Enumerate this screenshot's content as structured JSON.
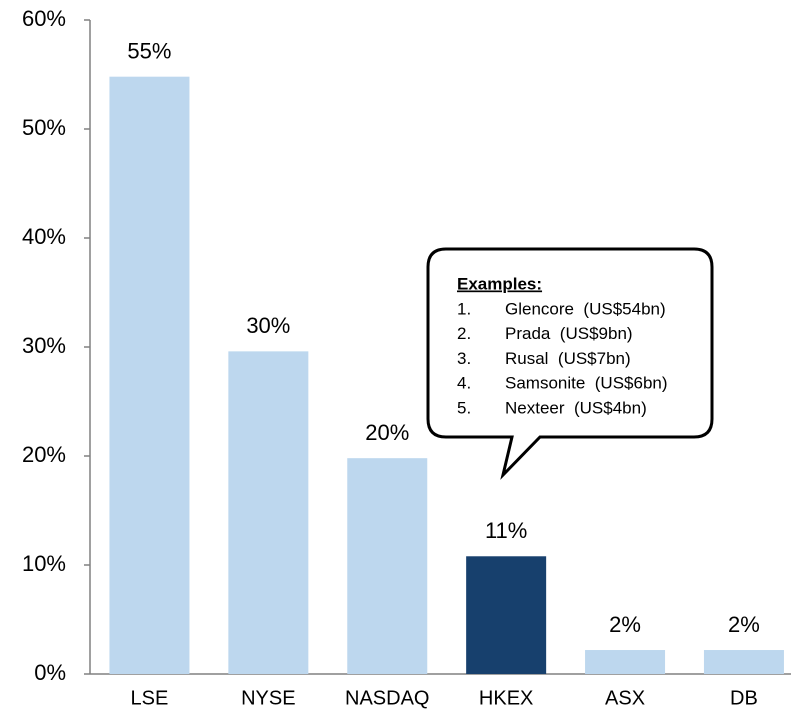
{
  "chart_data": {
    "type": "bar",
    "categories": [
      "LSE",
      "NYSE",
      "NASDAQ",
      "HKEX",
      "ASX",
      "DB"
    ],
    "values": [
      54.8,
      29.6,
      19.8,
      10.8,
      2.2,
      2.2
    ],
    "value_labels": [
      "55%",
      "30%",
      "20%",
      "11%",
      "2%",
      "2%"
    ],
    "colors": [
      "#bdd7ee",
      "#bdd7ee",
      "#bdd7ee",
      "#17406d",
      "#bdd7ee",
      "#bdd7ee"
    ],
    "ylim": [
      0,
      60
    ],
    "yticks": [
      {
        "value": 0,
        "label": "0%"
      },
      {
        "value": 10,
        "label": "10%"
      },
      {
        "value": 20,
        "label": "20%"
      },
      {
        "value": 30,
        "label": "30%"
      },
      {
        "value": 40,
        "label": "40%"
      },
      {
        "value": 50,
        "label": "50%"
      },
      {
        "value": 60,
        "label": "60%"
      }
    ],
    "grid": false,
    "annotation": {
      "title": "Examples:",
      "numbers": [
        "1.",
        "2.",
        "3.",
        "4.",
        "5."
      ],
      "items": [
        "Glencore  (US$54bn)",
        "Prada  (US$9bn)",
        "Rusal  (US$7bn)",
        "Samsonite  (US$6bn)",
        "Nexteer  (US$4bn)"
      ]
    }
  }
}
